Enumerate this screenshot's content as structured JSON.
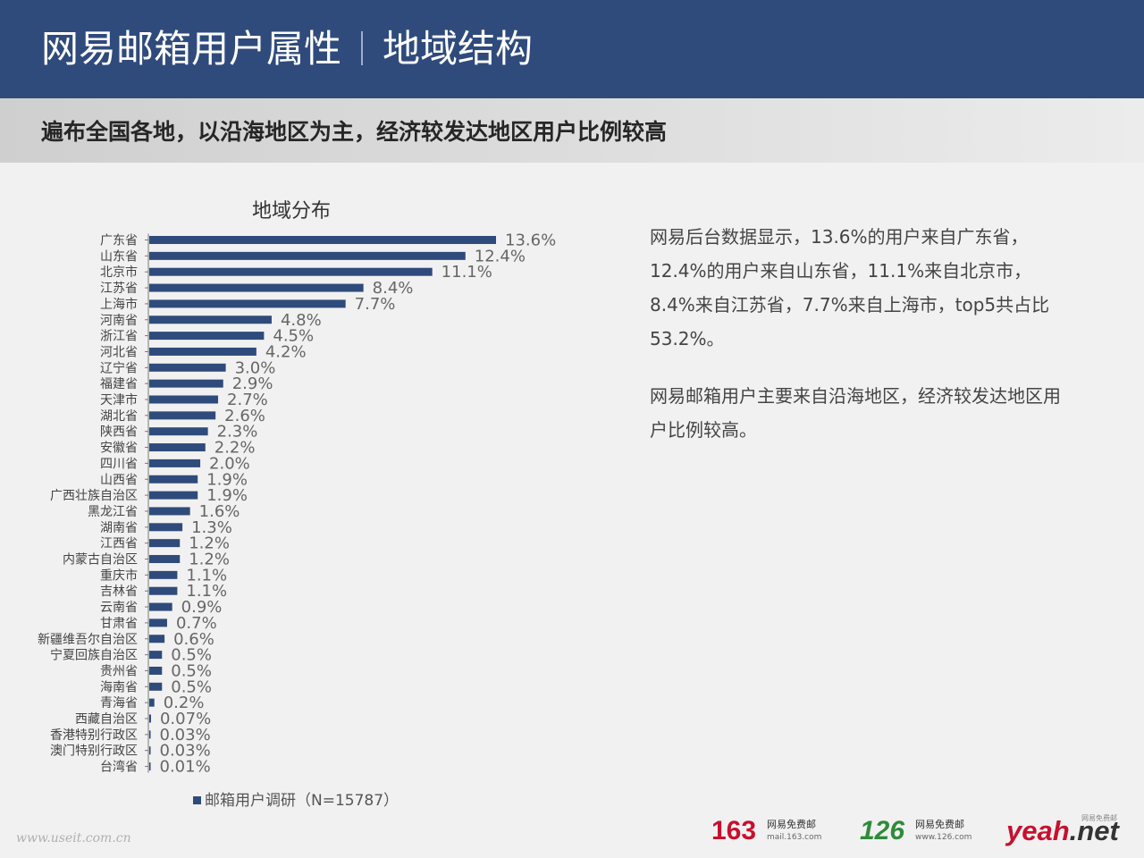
{
  "header": {
    "title": "网易邮箱用户属性",
    "section": "地域结构"
  },
  "subtitle": "遍布全国各地，以沿海地区为主，经济较发达地区用户比例较高",
  "description": [
    "网易后台数据显示，13.6%的用户来自广东省，12.4%的用户来自山东省，11.1%来自北京市，8.4%来自江苏省，7.7%来自上海市，top5共占比53.2%。",
    "网易邮箱用户主要来自沿海地区，经济较发达地区用户比例较高。"
  ],
  "watermark": "www.useit.com.cn",
  "logos": {
    "l163": {
      "mark": "163",
      "name": "网易免费邮",
      "url": "mail.163.com"
    },
    "l126": {
      "mark": "126",
      "name": "网易免费邮",
      "url": "www.126.com"
    },
    "yeah": {
      "mark_a": "yeah",
      "mark_b": ".net",
      "tag": "网易免费邮"
    }
  },
  "colors": {
    "header_bg": "#2f4b7c",
    "bar": "#2f4b7c"
  },
  "chart_data": {
    "type": "bar",
    "orientation": "horizontal",
    "title": "地域分布",
    "legend": "邮箱用户调研（N=15787）",
    "categories": [
      "广东省",
      "山东省",
      "北京市",
      "江苏省",
      "上海市",
      "河南省",
      "浙江省",
      "河北省",
      "辽宁省",
      "福建省",
      "天津市",
      "湖北省",
      "陕西省",
      "安徽省",
      "四川省",
      "山西省",
      "广西壮族自治区",
      "黑龙江省",
      "湖南省",
      "江西省",
      "内蒙古自治区",
      "重庆市",
      "吉林省",
      "云南省",
      "甘肃省",
      "新疆维吾尔自治区",
      "宁夏回族自治区",
      "贵州省",
      "海南省",
      "青海省",
      "西藏自治区",
      "香港特别行政区",
      "澳门特别行政区",
      "台湾省"
    ],
    "values": [
      13.6,
      12.4,
      11.1,
      8.4,
      7.7,
      4.8,
      4.5,
      4.2,
      3.0,
      2.9,
      2.7,
      2.6,
      2.3,
      2.2,
      2.0,
      1.9,
      1.9,
      1.6,
      1.3,
      1.2,
      1.2,
      1.1,
      1.1,
      0.9,
      0.7,
      0.6,
      0.5,
      0.5,
      0.5,
      0.2,
      0.07,
      0.03,
      0.03,
      0.01
    ],
    "labels": [
      "13.6%",
      "12.4%",
      "11.1%",
      "8.4%",
      "7.7%",
      "4.8%",
      "4.5%",
      "4.2%",
      "3.0%",
      "2.9%",
      "2.7%",
      "2.6%",
      "2.3%",
      "2.2%",
      "2.0%",
      "1.9%",
      "1.9%",
      "1.6%",
      "1.3%",
      "1.2%",
      "1.2%",
      "1.1%",
      "1.1%",
      "0.9%",
      "0.7%",
      "0.6%",
      "0.5%",
      "0.5%",
      "0.5%",
      "0.2%",
      "0.07%",
      "0.03%",
      "0.03%",
      "0.01%"
    ],
    "unit": "%"
  }
}
